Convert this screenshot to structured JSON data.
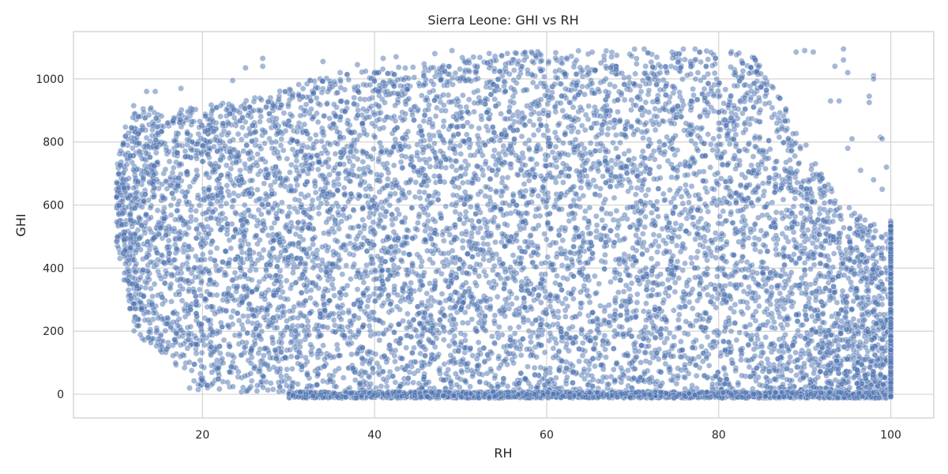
{
  "chart_data": {
    "type": "scatter",
    "title": "Sierra Leone: GHI vs RH",
    "xlabel": "RH",
    "ylabel": "GHI",
    "xlim": [
      5,
      105
    ],
    "ylim": [
      -75,
      1150
    ],
    "xticks": [
      20,
      40,
      60,
      80,
      100
    ],
    "yticks": [
      0,
      200,
      400,
      600,
      800,
      1000
    ],
    "xtick_labels": [
      "20",
      "40",
      "60",
      "80",
      "100"
    ],
    "ytick_labels": [
      "0",
      "200",
      "400",
      "600",
      "800",
      "1000"
    ],
    "grid": true,
    "marker_color": "#4c72b0",
    "marker_edge_color": "#ffffff",
    "marker_alpha": 0.5,
    "upper_envelope": [
      {
        "rh": 10,
        "ghi": 720
      },
      {
        "rh": 11,
        "ghi": 850
      },
      {
        "rh": 12,
        "ghi": 900
      },
      {
        "rh": 14,
        "ghi": 910
      },
      {
        "rh": 16,
        "ghi": 880
      },
      {
        "rh": 18,
        "ghi": 920
      },
      {
        "rh": 20,
        "ghi": 920
      },
      {
        "rh": 24,
        "ghi": 930
      },
      {
        "rh": 28,
        "ghi": 950
      },
      {
        "rh": 32,
        "ghi": 1000
      },
      {
        "rh": 36,
        "ghi": 1010
      },
      {
        "rh": 40,
        "ghi": 1030
      },
      {
        "rh": 44,
        "ghi": 1040
      },
      {
        "rh": 48,
        "ghi": 1060
      },
      {
        "rh": 52,
        "ghi": 1080
      },
      {
        "rh": 56,
        "ghi": 1085
      },
      {
        "rh": 60,
        "ghi": 1090
      },
      {
        "rh": 70,
        "ghi": 1095
      },
      {
        "rh": 80,
        "ghi": 1095
      },
      {
        "rh": 84,
        "ghi": 1080
      },
      {
        "rh": 86,
        "ghi": 1000
      },
      {
        "rh": 88,
        "ghi": 900
      },
      {
        "rh": 90,
        "ghi": 800
      },
      {
        "rh": 92,
        "ghi": 700
      },
      {
        "rh": 94,
        "ghi": 620
      },
      {
        "rh": 96,
        "ghi": 580
      },
      {
        "rh": 98,
        "ghi": 540
      },
      {
        "rh": 100,
        "ghi": 500
      }
    ],
    "lower_envelope": [
      {
        "rh": 10,
        "ghi": 480
      },
      {
        "rh": 12,
        "ghi": 200
      },
      {
        "rh": 14,
        "ghi": 150
      },
      {
        "rh": 16,
        "ghi": 120
      },
      {
        "rh": 18,
        "ghi": 60
      },
      {
        "rh": 20,
        "ghi": 20
      },
      {
        "rh": 24,
        "ghi": 5
      },
      {
        "rh": 30,
        "ghi": -5
      },
      {
        "rh": 35,
        "ghi": -10
      },
      {
        "rh": 40,
        "ghi": -12
      },
      {
        "rh": 100,
        "ghi": -12
      }
    ],
    "outliers": [
      {
        "rh": 27,
        "ghi": 1065
      },
      {
        "rh": 27,
        "ghi": 1040
      },
      {
        "rh": 25,
        "ghi": 1035
      },
      {
        "rh": 23.5,
        "ghi": 995
      },
      {
        "rh": 17.5,
        "ghi": 970
      },
      {
        "rh": 14.5,
        "ghi": 960
      },
      {
        "rh": 13.5,
        "ghi": 960
      },
      {
        "rh": 12,
        "ghi": 915
      },
      {
        "rh": 18.5,
        "ghi": 20
      },
      {
        "rh": 19.5,
        "ghi": 15
      },
      {
        "rh": 34,
        "ghi": 1055
      },
      {
        "rh": 36,
        "ghi": 1020
      },
      {
        "rh": 41,
        "ghi": 1065
      },
      {
        "rh": 42.5,
        "ghi": 1070
      },
      {
        "rh": 38,
        "ghi": 1045
      },
      {
        "rh": 47,
        "ghi": 1080
      },
      {
        "rh": 49,
        "ghi": 1090
      },
      {
        "rh": 89,
        "ghi": 1085
      },
      {
        "rh": 90,
        "ghi": 1090
      },
      {
        "rh": 91,
        "ghi": 1085
      },
      {
        "rh": 94.5,
        "ghi": 1095
      },
      {
        "rh": 94.5,
        "ghi": 1060
      },
      {
        "rh": 93.5,
        "ghi": 1040
      },
      {
        "rh": 95,
        "ghi": 1020
      },
      {
        "rh": 98,
        "ghi": 1010
      },
      {
        "rh": 98,
        "ghi": 1000
      },
      {
        "rh": 97.5,
        "ghi": 945
      },
      {
        "rh": 97.5,
        "ghi": 925
      },
      {
        "rh": 93,
        "ghi": 930
      },
      {
        "rh": 94,
        "ghi": 930
      },
      {
        "rh": 95.5,
        "ghi": 810
      },
      {
        "rh": 98.8,
        "ghi": 815
      },
      {
        "rh": 99,
        "ghi": 810
      },
      {
        "rh": 95,
        "ghi": 780
      },
      {
        "rh": 99.5,
        "ghi": 720
      },
      {
        "rh": 96.5,
        "ghi": 710
      },
      {
        "rh": 98,
        "ghi": 680
      },
      {
        "rh": 99,
        "ghi": 650
      }
    ]
  }
}
